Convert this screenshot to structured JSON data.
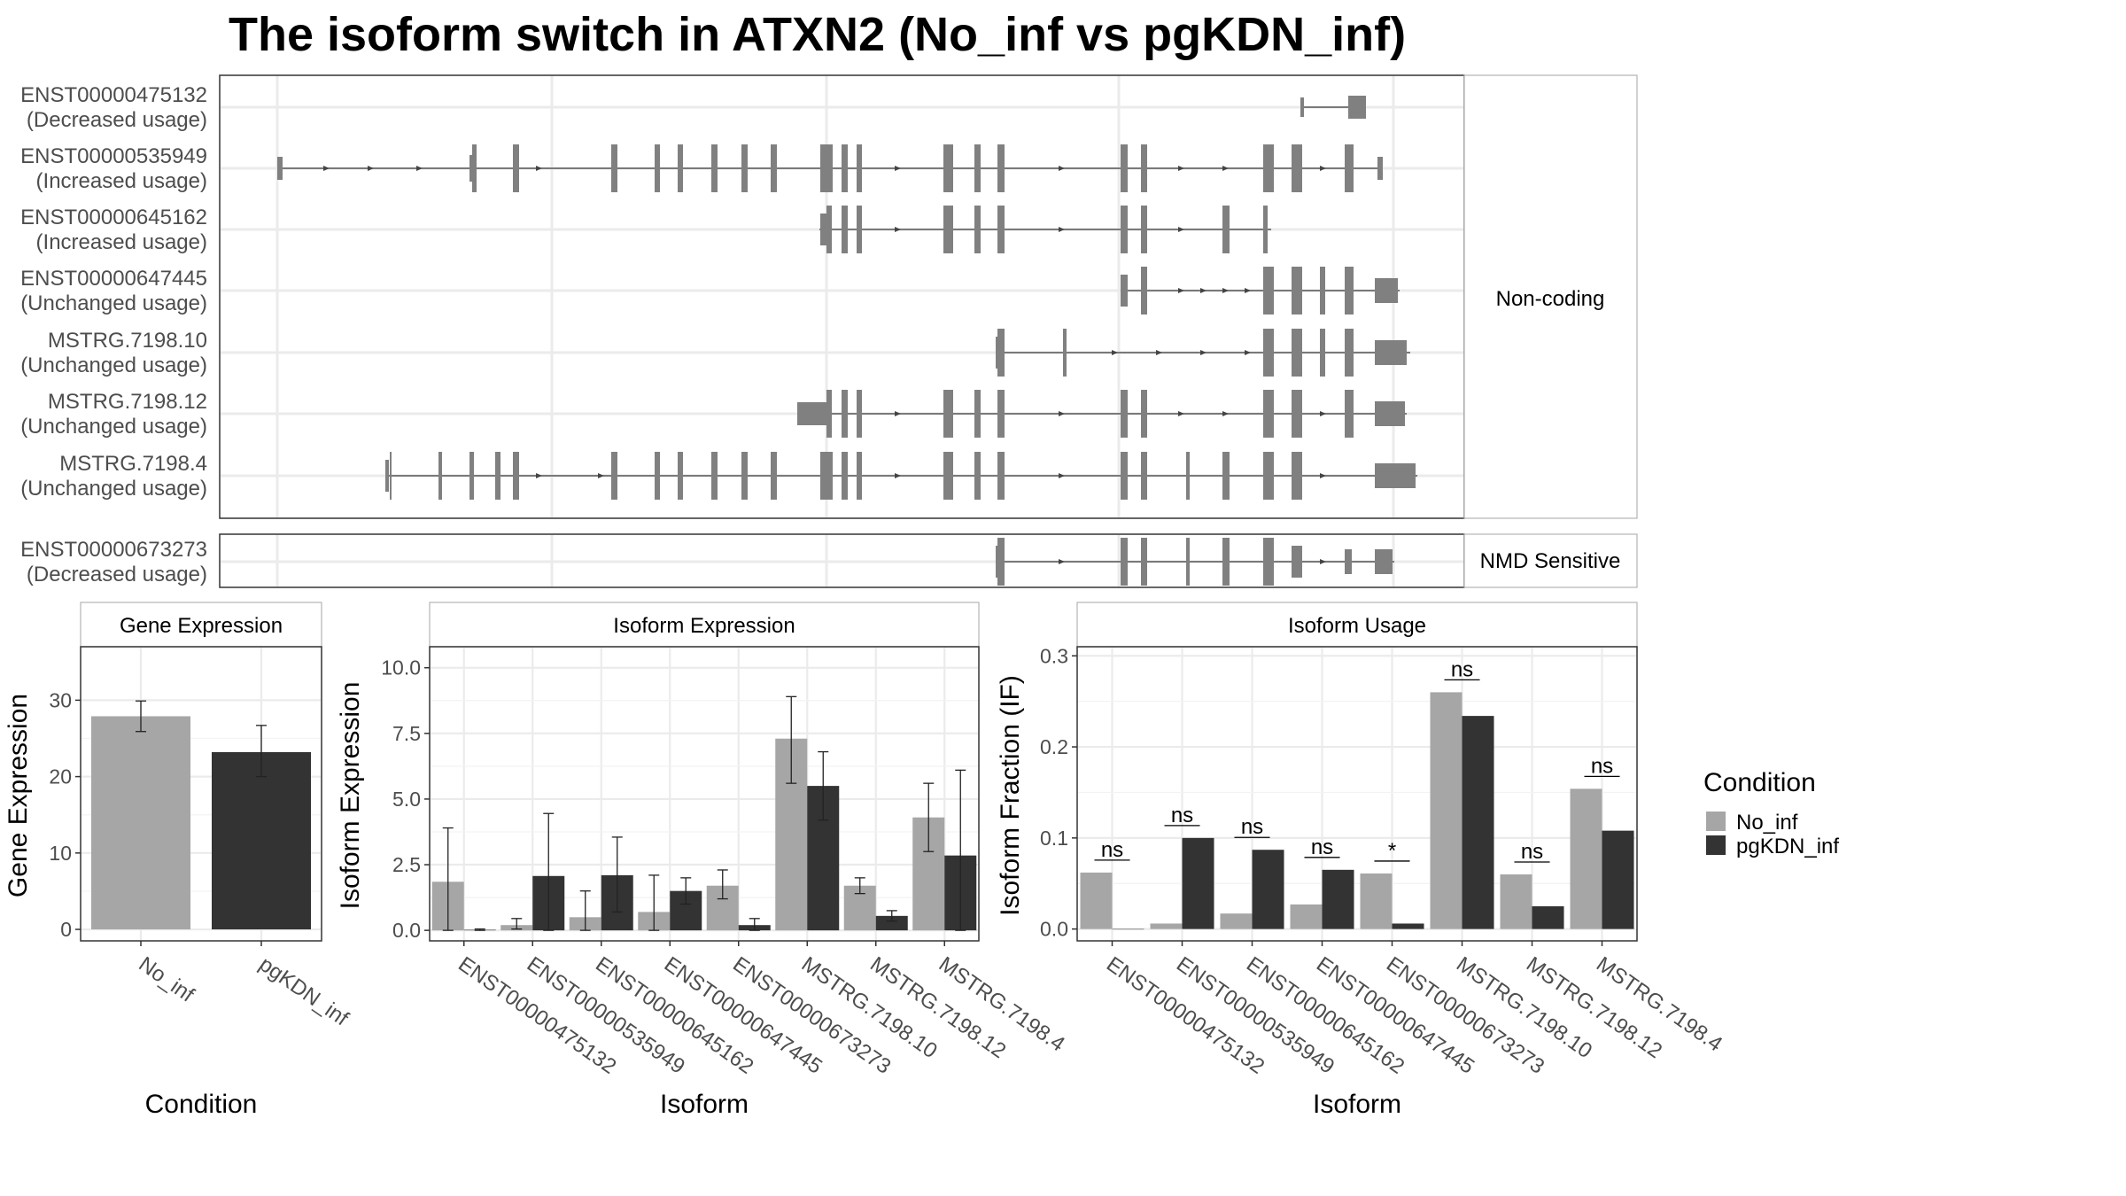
{
  "title": "The isoform switch in ATXN2 (No_inf vs pgKDN_inf)",
  "colors": {
    "no_inf": "#a6a6a6",
    "pgkdn_inf": "#333333",
    "exon": "#808080",
    "grid": "#ebebeb",
    "panel_border": "#333333",
    "strip_border": "#b3b3b3"
  },
  "legend": {
    "title": "Condition",
    "items": [
      "No_inf",
      "pgKDN_inf"
    ]
  },
  "structure": {
    "noncoding_label": "Non-coding",
    "nmd_label": "NMD Sensitive",
    "transcripts": [
      {
        "id": "ENST00000475132",
        "usage": "(Decreased usage)",
        "group": "noncoding"
      },
      {
        "id": "ENST00000535949",
        "usage": "(Increased usage)",
        "group": "noncoding"
      },
      {
        "id": "ENST00000645162",
        "usage": "(Increased usage)",
        "group": "noncoding"
      },
      {
        "id": "ENST00000647445",
        "usage": "(Unchanged usage)",
        "group": "noncoding"
      },
      {
        "id": "MSTRG.7198.10",
        "usage": "(Unchanged usage)",
        "group": "noncoding"
      },
      {
        "id": "MSTRG.7198.12",
        "usage": "(Unchanged usage)",
        "group": "noncoding"
      },
      {
        "id": "MSTRG.7198.4",
        "usage": "(Unchanged usage)",
        "group": "noncoding"
      },
      {
        "id": "ENST00000673273",
        "usage": "(Decreased usage)",
        "group": "nmd"
      }
    ]
  },
  "chart_data": [
    {
      "type": "bar",
      "title": "Gene Expression",
      "xlabel": "Condition",
      "ylabel": "Gene Expression",
      "categories": [
        "No_inf",
        "pgKDN_inf"
      ],
      "values": [
        27.9,
        23.2
      ],
      "error": [
        [
          25.9,
          29.9
        ],
        [
          20.0,
          26.7
        ]
      ],
      "ylim": [
        -1.5,
        37
      ],
      "yticks": [
        0,
        10,
        20,
        30
      ]
    },
    {
      "type": "bar",
      "title": "Isoform Expression",
      "xlabel": "Isoform",
      "ylabel": "Isoform Expression",
      "categories": [
        "ENST00000475132",
        "ENST00000535949",
        "ENST00000645162",
        "ENST00000647445",
        "ENST00000673273",
        "MSTRG.7198.10",
        "MSTRG.7198.12",
        "MSTRG.7198.4"
      ],
      "series": [
        {
          "name": "No_inf",
          "values": [
            1.85,
            0.2,
            0.5,
            0.7,
            1.7,
            7.3,
            1.7,
            4.3
          ],
          "error": [
            [
              0,
              3.9
            ],
            [
              0.05,
              0.45
            ],
            [
              0,
              1.5
            ],
            [
              0,
              2.1
            ],
            [
              1.2,
              2.3
            ],
            [
              5.6,
              8.9
            ],
            [
              1.4,
              2.0
            ],
            [
              3.0,
              5.6
            ]
          ]
        },
        {
          "name": "pgKDN_inf",
          "values": [
            0.02,
            2.07,
            2.1,
            1.5,
            0.2,
            5.5,
            0.55,
            2.85
          ],
          "error": [
            [
              0,
              0.05
            ],
            [
              0,
              4.45
            ],
            [
              0.7,
              3.55
            ],
            [
              1.0,
              2.0
            ],
            [
              0,
              0.45
            ],
            [
              4.2,
              6.8
            ],
            [
              0.35,
              0.75
            ],
            [
              0,
              6.1
            ]
          ]
        }
      ],
      "ylim": [
        -0.4,
        10.8
      ],
      "yticks": [
        0.0,
        2.5,
        5.0,
        7.5,
        10.0
      ]
    },
    {
      "type": "bar",
      "title": "Isoform Usage",
      "xlabel": "Isoform",
      "ylabel": "Isoform Fraction (IF)",
      "categories": [
        "ENST00000475132",
        "ENST00000535949",
        "ENST00000645162",
        "ENST00000647445",
        "ENST00000673273",
        "MSTRG.7198.10",
        "MSTRG.7198.12",
        "MSTRG.7198.4"
      ],
      "series": [
        {
          "name": "No_inf",
          "values": [
            0.062,
            0.006,
            0.017,
            0.027,
            0.061,
            0.26,
            0.06,
            0.154
          ]
        },
        {
          "name": "pgKDN_inf",
          "values": [
            0.0,
            0.1,
            0.087,
            0.065,
            0.006,
            0.234,
            0.025,
            0.108
          ]
        }
      ],
      "significance": [
        "ns",
        "ns",
        "ns",
        "ns",
        "*",
        "ns",
        "ns",
        "ns"
      ],
      "ylim": [
        -0.013,
        0.31
      ],
      "yticks": [
        0.0,
        0.1,
        0.2,
        0.3
      ]
    }
  ]
}
